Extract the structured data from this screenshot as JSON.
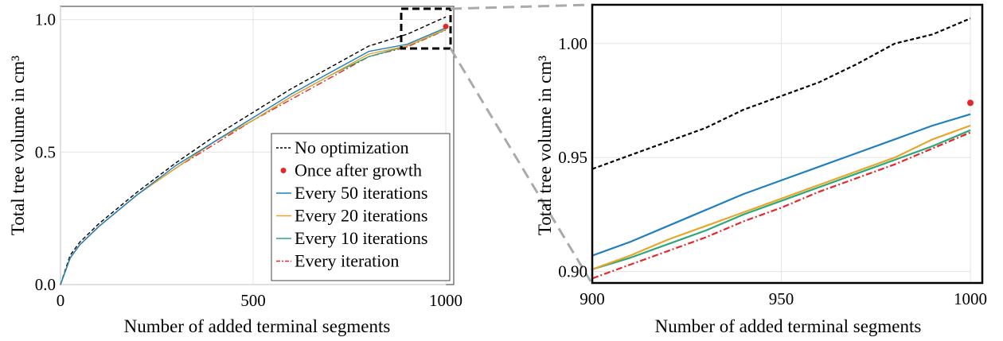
{
  "chart_data": [
    {
      "type": "line",
      "xlabel": "Number of added terminal segments",
      "ylabel": "Total tree volume in cm³",
      "xlim": [
        0,
        1000
      ],
      "ylim": [
        0,
        1.05
      ],
      "xticks": [
        0,
        500,
        1000
      ],
      "xtick_labels": [
        "0",
        "500",
        "1000"
      ],
      "yticks": [
        0,
        0.5,
        1.0
      ],
      "ytick_labels": [
        "0.0",
        "0.5",
        "1.0"
      ],
      "grid": true,
      "legend_position": "bottom-right",
      "x": [
        0,
        25,
        50,
        100,
        150,
        200,
        300,
        400,
        500,
        600,
        700,
        800,
        900,
        1000
      ],
      "series": [
        {
          "name": "No optimization",
          "color": "#000000",
          "style": "dashed",
          "values": [
            0,
            0.11,
            0.16,
            0.23,
            0.29,
            0.35,
            0.46,
            0.56,
            0.65,
            0.74,
            0.82,
            0.9,
            0.945,
            1.01
          ]
        },
        {
          "name": "Once after growth",
          "color": "#e8262a",
          "style": "point",
          "points": [
            {
              "x": 1000,
              "y": 0.974
            }
          ]
        },
        {
          "name": "Every 50 iterations",
          "color": "#1f7fbf",
          "style": "solid",
          "values": [
            0,
            0.1,
            0.15,
            0.22,
            0.28,
            0.34,
            0.45,
            0.54,
            0.63,
            0.72,
            0.8,
            0.88,
            0.907,
            0.969
          ]
        },
        {
          "name": "Every 20 iterations",
          "color": "#e8a52a",
          "style": "solid",
          "values": [
            0,
            0.1,
            0.15,
            0.22,
            0.28,
            0.34,
            0.44,
            0.54,
            0.62,
            0.71,
            0.79,
            0.87,
            0.901,
            0.964
          ]
        },
        {
          "name": "Every 10 iterations",
          "color": "#2aa879",
          "style": "solid",
          "values": [
            0,
            0.1,
            0.15,
            0.22,
            0.28,
            0.34,
            0.44,
            0.54,
            0.62,
            0.71,
            0.79,
            0.86,
            0.901,
            0.962
          ]
        },
        {
          "name": "Every iteration",
          "color": "#e8262a",
          "style": "dashdot",
          "values": [
            0,
            0.1,
            0.15,
            0.22,
            0.28,
            0.34,
            0.44,
            0.53,
            0.62,
            0.7,
            0.78,
            0.86,
            0.897,
            0.961
          ]
        }
      ]
    },
    {
      "type": "line",
      "xlabel": "Number of added terminal segments",
      "ylabel": "Total tree volume in cm³",
      "xlim": [
        900,
        1000
      ],
      "ylim": [
        0.895,
        1.017
      ],
      "xticks": [
        900,
        950,
        1000
      ],
      "xtick_labels": [
        "900",
        "950",
        "1000"
      ],
      "yticks": [
        0.9,
        0.95,
        1.0
      ],
      "ytick_labels": [
        "0.90",
        "0.95",
        "1.00"
      ],
      "grid": true,
      "x": [
        900,
        910,
        920,
        930,
        940,
        950,
        960,
        970,
        980,
        990,
        1000
      ],
      "series": [
        {
          "name": "No optimization",
          "color": "#000000",
          "style": "dashed",
          "values": [
            0.945,
            0.951,
            0.957,
            0.963,
            0.971,
            0.977,
            0.983,
            0.991,
            1.0,
            1.004,
            1.011
          ]
        },
        {
          "name": "Once after growth",
          "color": "#e8262a",
          "style": "point",
          "points": [
            {
              "x": 1000,
              "y": 0.974
            }
          ]
        },
        {
          "name": "Every 50 iterations",
          "color": "#1f7fbf",
          "style": "solid",
          "values": [
            0.907,
            0.913,
            0.92,
            0.927,
            0.934,
            0.94,
            0.946,
            0.952,
            0.958,
            0.964,
            0.969
          ]
        },
        {
          "name": "Every 20 iterations",
          "color": "#e8a52a",
          "style": "solid",
          "values": [
            0.901,
            0.907,
            0.914,
            0.92,
            0.926,
            0.932,
            0.938,
            0.944,
            0.95,
            0.958,
            0.964
          ]
        },
        {
          "name": "Every 10 iterations",
          "color": "#2aa879",
          "style": "solid",
          "values": [
            0.901,
            0.906,
            0.912,
            0.918,
            0.925,
            0.931,
            0.937,
            0.943,
            0.949,
            0.955,
            0.962
          ]
        },
        {
          "name": "Every iteration",
          "color": "#e8262a",
          "style": "dashdot",
          "values": [
            0.897,
            0.903,
            0.909,
            0.915,
            0.922,
            0.928,
            0.935,
            0.941,
            0.947,
            0.954,
            0.961
          ]
        }
      ]
    }
  ]
}
